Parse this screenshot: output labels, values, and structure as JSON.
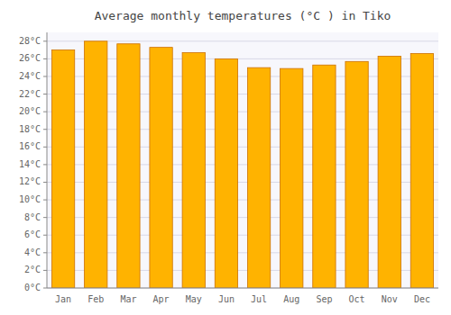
{
  "chart_data": {
    "type": "bar",
    "title": "Average monthly temperatures (°C ) in Tiko",
    "categories": [
      "Jan",
      "Feb",
      "Mar",
      "Apr",
      "May",
      "Jun",
      "Jul",
      "Aug",
      "Sep",
      "Oct",
      "Nov",
      "Dec"
    ],
    "values": [
      27.0,
      28.0,
      27.7,
      27.3,
      26.7,
      26.0,
      25.0,
      24.9,
      25.3,
      25.7,
      26.3,
      26.6
    ],
    "color": "#FFB300",
    "ylim": [
      0,
      29
    ],
    "yticks": [
      {
        "value": 0,
        "label": "0°C"
      },
      {
        "value": 2,
        "label": "2°C"
      },
      {
        "value": 4,
        "label": "4°C"
      },
      {
        "value": 6,
        "label": "6°C"
      },
      {
        "value": 8,
        "label": "8°C"
      },
      {
        "value": 10,
        "label": "10°C"
      },
      {
        "value": 12,
        "label": "12°C"
      },
      {
        "value": 14,
        "label": "14°C"
      },
      {
        "value": 16,
        "label": "16°C"
      },
      {
        "value": 18,
        "label": "18°C"
      },
      {
        "value": 20,
        "label": "20°C"
      },
      {
        "value": 22,
        "label": "22°C"
      },
      {
        "value": 24,
        "label": "24°C"
      },
      {
        "value": 26,
        "label": "26°C"
      },
      {
        "value": 28,
        "label": "28°C"
      }
    ],
    "grid": true
  }
}
